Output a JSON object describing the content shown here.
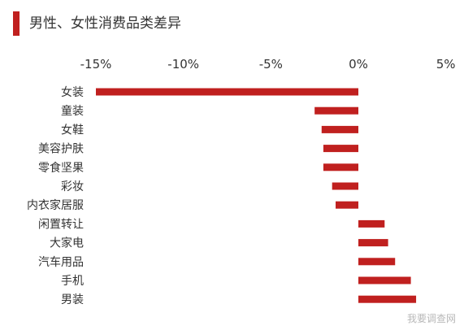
{
  "title": "男性、女性消费品类差异",
  "watermark": "我要调查网",
  "colors": {
    "accent": "#c0201f",
    "bar": "#c0201f",
    "text": "#333333",
    "watermark": "#b8b8b8"
  },
  "chart_data": {
    "type": "bar",
    "orientation": "horizontal",
    "title": "男性、女性消费品类差异",
    "xlabel": "",
    "ylabel": "",
    "unit": "%",
    "xlim": [
      -15,
      5
    ],
    "ticks": [
      -15,
      -10,
      -5,
      0,
      5
    ],
    "tick_labels": [
      "-15%",
      "-10%",
      "-5%",
      "0%",
      "5%"
    ],
    "axis_position": "top",
    "grid": false,
    "legend": "none",
    "categories": [
      "女装",
      "童装",
      "女鞋",
      "美容护肤",
      "零食坚果",
      "彩妆",
      "内衣家居服",
      "闲置转让",
      "大家电",
      "汽车用品",
      "手机",
      "男装"
    ],
    "values": [
      -15,
      -2.5,
      -2.1,
      -2.0,
      -2.0,
      -1.5,
      -1.3,
      1.5,
      1.7,
      2.1,
      3.0,
      3.3
    ]
  }
}
